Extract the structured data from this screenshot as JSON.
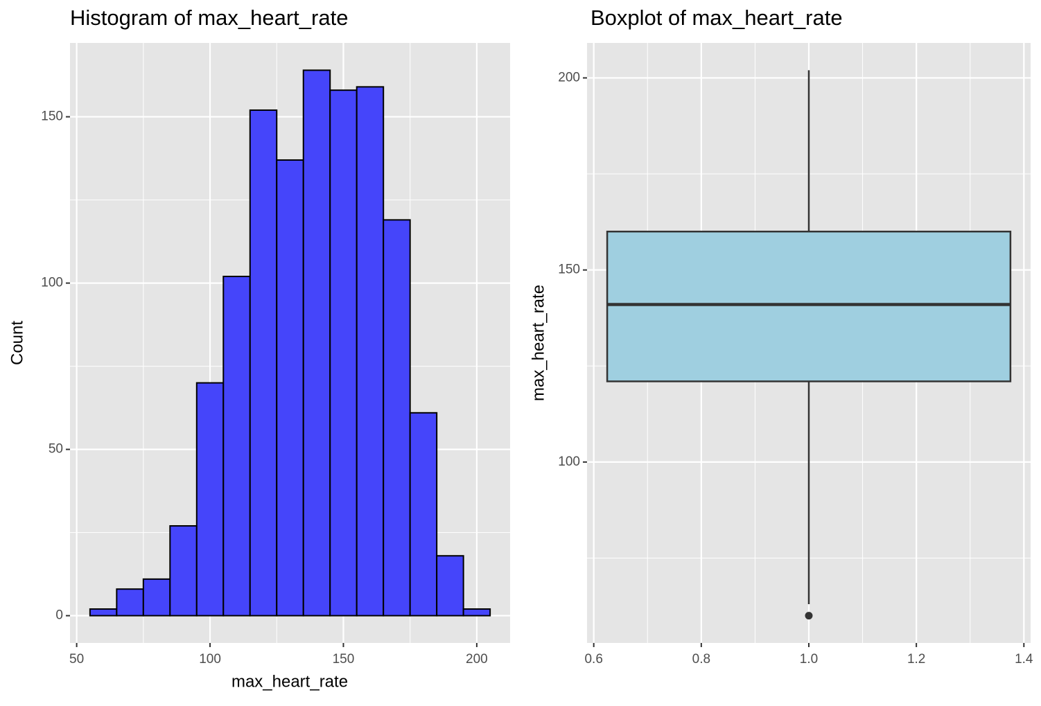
{
  "chart_data": [
    {
      "type": "histogram",
      "title": "Histogram of max_heart_rate",
      "x_label": "max_heart_rate",
      "y_label": "Count",
      "bins": [
        55,
        65,
        75,
        85,
        95,
        105,
        115,
        125,
        135,
        145,
        155,
        165,
        175,
        185,
        195,
        205
      ],
      "counts": [
        2,
        8,
        11,
        27,
        70,
        102,
        152,
        137,
        164,
        158,
        159,
        119,
        61,
        18,
        2
      ],
      "color": "#4545fa",
      "edgecolor": "#000000",
      "xlim": [
        47.5,
        212.5
      ],
      "ylim": [
        -8.2,
        172.2
      ],
      "xticks": [
        50,
        100,
        150,
        200
      ],
      "yticks": [
        0,
        50,
        100,
        150
      ],
      "minor_xticks": [
        75,
        125,
        175
      ],
      "minor_yticks": [
        25,
        75,
        125
      ],
      "grid": true
    },
    {
      "type": "boxplot",
      "title": "Boxplot of max_heart_rate",
      "y_label": "max_heart_rate",
      "positions": [
        1
      ],
      "widths": [
        0.75
      ],
      "boxes": [
        {
          "q1": 121,
          "median": 141,
          "q3": 160,
          "whislo": 63,
          "whishi": 202,
          "fliers": [
            60
          ]
        }
      ],
      "color": "#9fcfe0",
      "edgecolor": "#333333",
      "xlim": [
        0.5875,
        1.4125
      ],
      "ylim": [
        52.9,
        209.1
      ],
      "xticks": [
        0.6,
        0.8,
        {
          "value": 1,
          "label": "1.0"
        },
        1.2,
        1.4
      ],
      "yticks": [
        100,
        150,
        200
      ],
      "minor_xticks": [
        0.7,
        0.9,
        1.1,
        1.3
      ],
      "minor_yticks": [
        75,
        125,
        175
      ],
      "grid": true
    }
  ]
}
